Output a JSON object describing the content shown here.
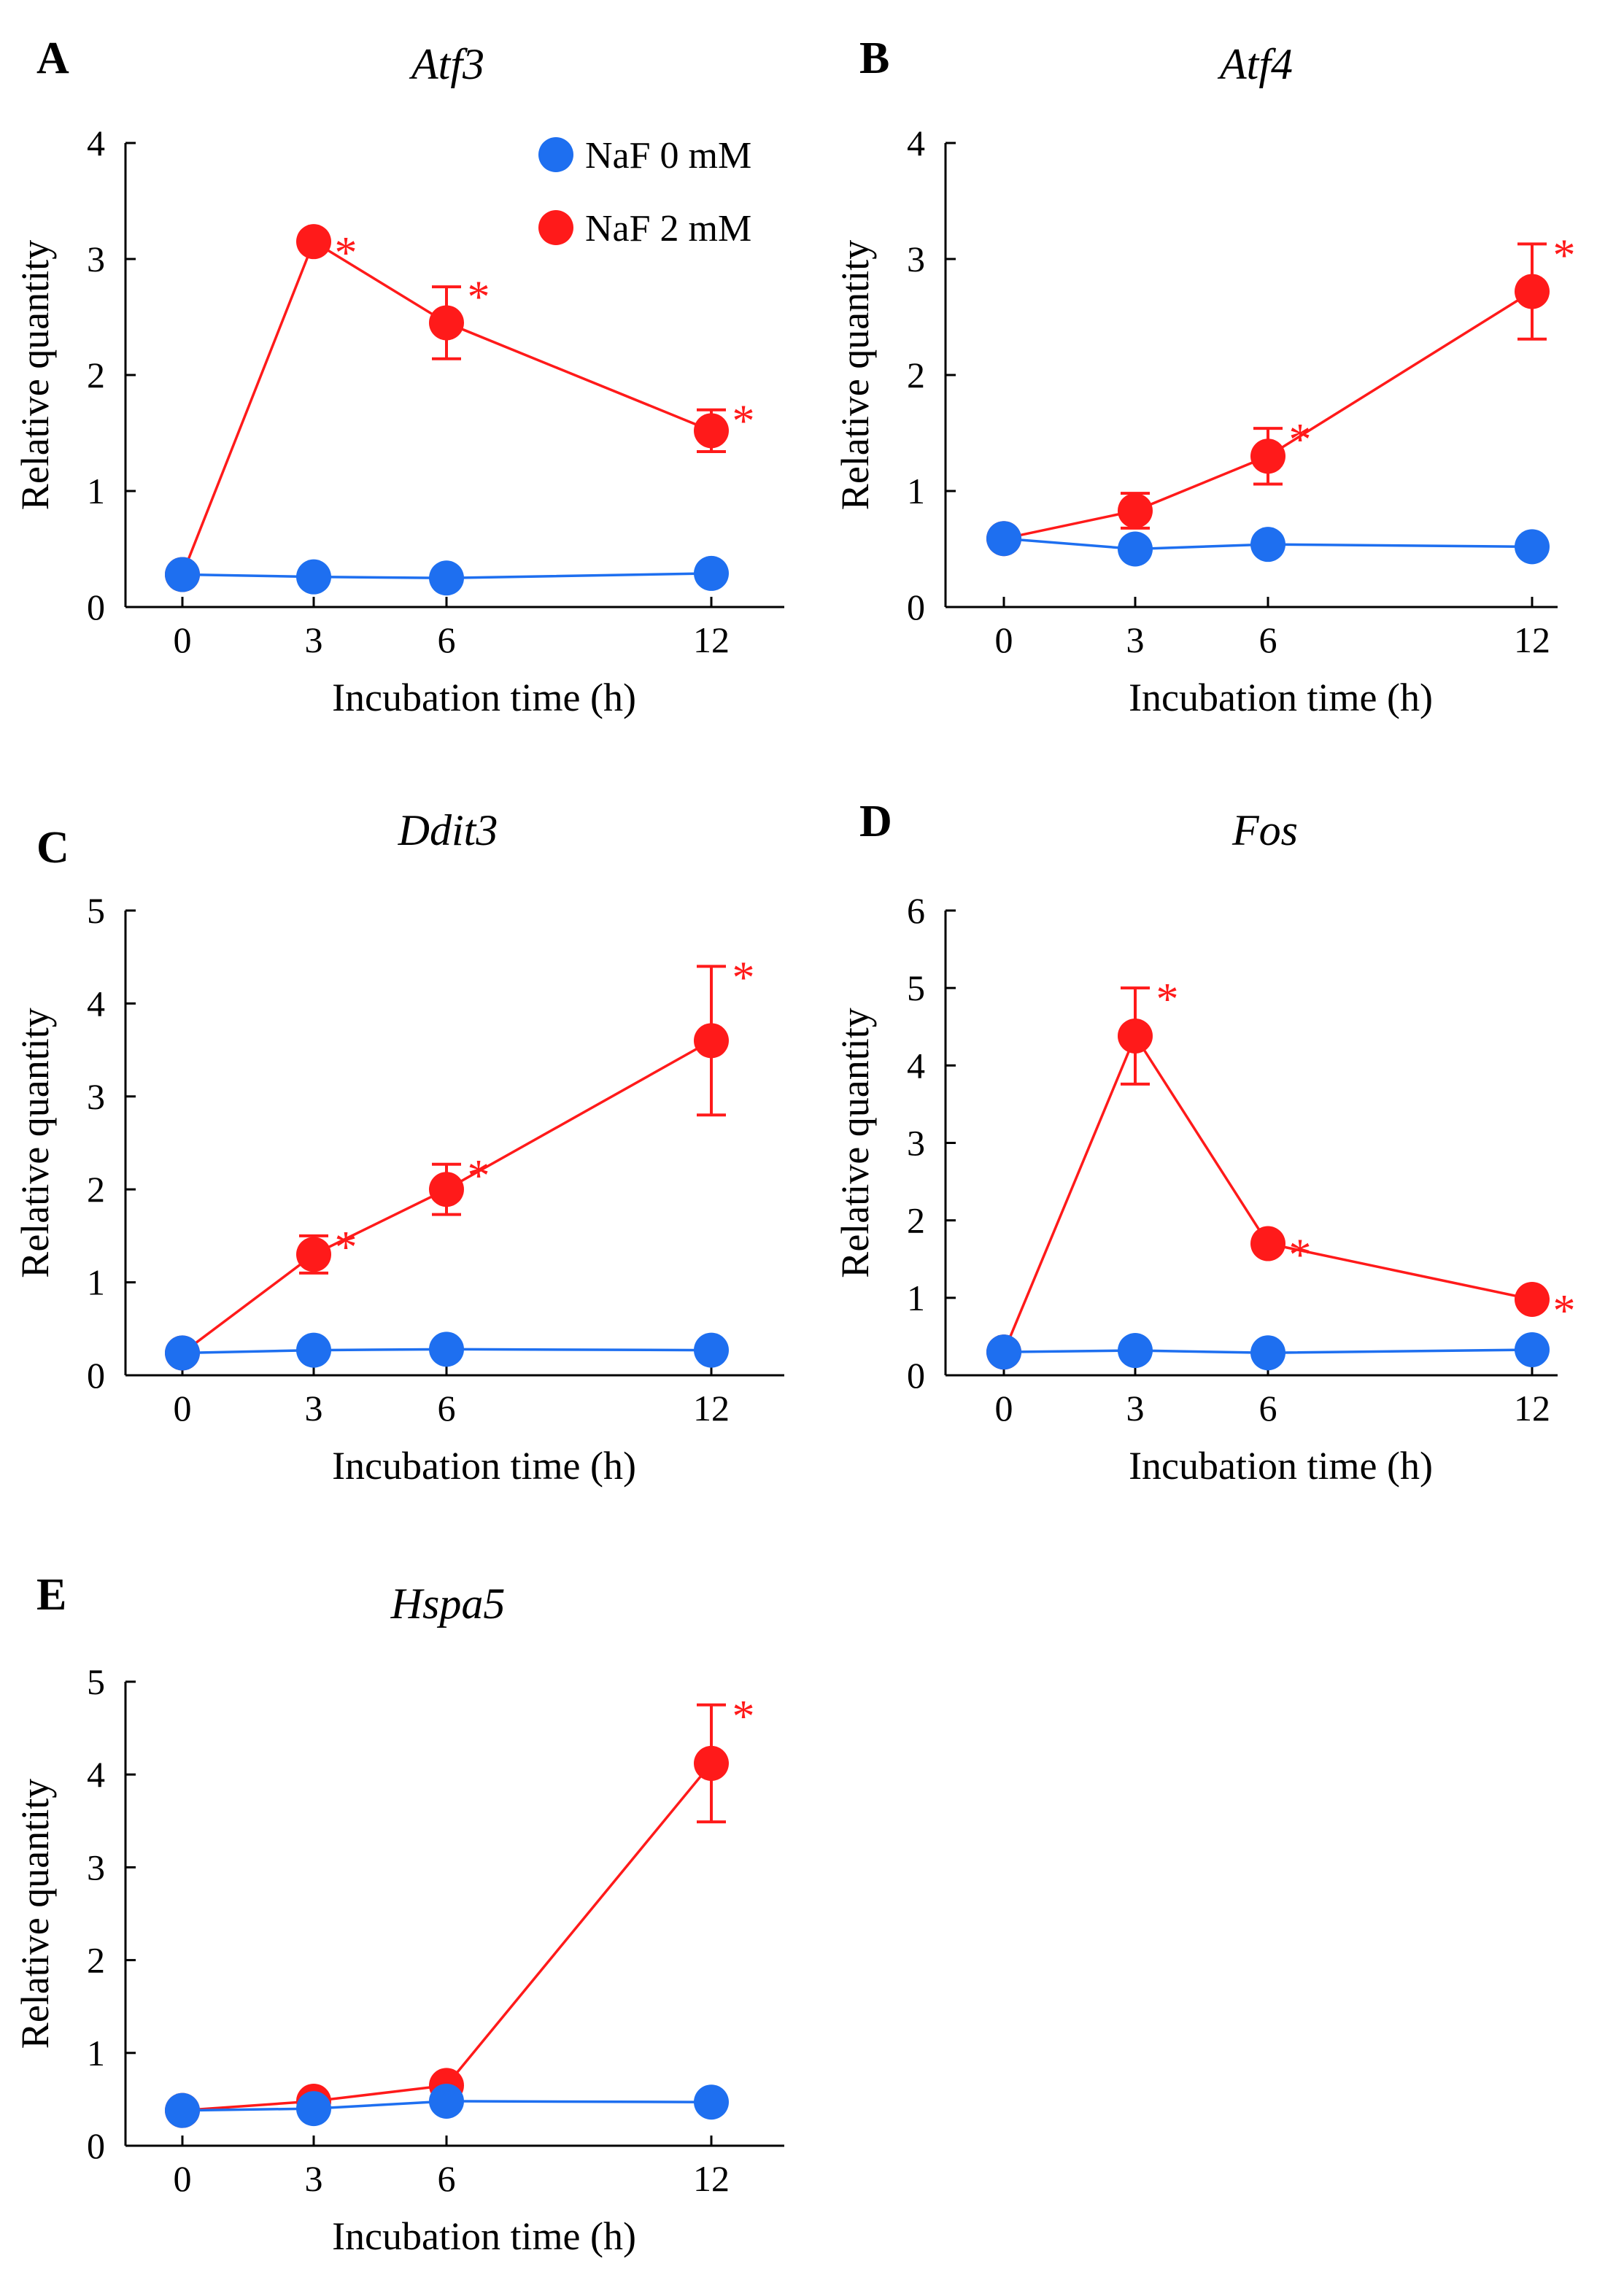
{
  "colors": {
    "control": "#1e6ff0",
    "treated": "#ff1a1a",
    "axis": "#000000"
  },
  "legend": [
    {
      "label": "NaF 0 mM",
      "series": "control"
    },
    {
      "label": "NaF 2 mM",
      "series": "treated"
    }
  ],
  "chart_data": [
    {
      "panel": "A",
      "title": "Atf3",
      "type": "line",
      "x": [
        0,
        3,
        6,
        12
      ],
      "xticks": [
        "0",
        "3",
        "6",
        "12"
      ],
      "xlim": [
        -1.2,
        13.8
      ],
      "ylim": [
        0,
        4
      ],
      "yticks": [
        "0",
        "1",
        "2",
        "3",
        "4"
      ],
      "xlabel": "Incubation time (h)",
      "ylabel": "Relative quantity",
      "series": [
        {
          "name": "NaF 0 mM",
          "key": "control",
          "values": [
            0.28,
            0.26,
            0.25,
            0.29
          ],
          "errors": [
            0,
            0,
            0,
            0
          ]
        },
        {
          "name": "NaF 2 mM",
          "key": "treated",
          "values": [
            0.28,
            3.15,
            2.45,
            1.52
          ],
          "errors": [
            0,
            0,
            0.31,
            0.18
          ]
        }
      ],
      "significance": [
        {
          "x": 3,
          "y": 3.15,
          "label": "*"
        },
        {
          "x": 6,
          "y": 2.77,
          "label": "*"
        },
        {
          "x": 12,
          "y": 1.7,
          "label": "*"
        }
      ]
    },
    {
      "panel": "B",
      "title": "Atf4",
      "type": "line",
      "x": [
        0,
        3,
        6,
        12
      ],
      "xticks": [
        "0",
        "3",
        "6",
        "12"
      ],
      "xlim": [
        -1.2,
        13.8
      ],
      "ylim": [
        0,
        4
      ],
      "yticks": [
        "0",
        "1",
        "2",
        "3",
        "4"
      ],
      "xlabel": "Incubation time (h)",
      "ylabel": "Relative quantity",
      "series": [
        {
          "name": "NaF 0 mM",
          "key": "control",
          "values": [
            0.59,
            0.5,
            0.54,
            0.52
          ],
          "errors": [
            0,
            0,
            0,
            0
          ]
        },
        {
          "name": "NaF 2 mM",
          "key": "treated",
          "values": [
            0.59,
            0.83,
            1.3,
            2.72
          ],
          "errors": [
            0,
            0.15,
            0.24,
            0.41
          ]
        }
      ],
      "significance": [
        {
          "x": 6,
          "y": 1.54,
          "label": "*"
        },
        {
          "x": 12,
          "y": 3.13,
          "label": "*"
        }
      ]
    },
    {
      "panel": "C",
      "title": "Ddit3",
      "type": "line",
      "x": [
        0,
        3,
        6,
        12
      ],
      "xticks": [
        "0",
        "3",
        "6",
        "12"
      ],
      "xlim": [
        -1.2,
        13.8
      ],
      "ylim": [
        0,
        5
      ],
      "yticks": [
        "0",
        "1",
        "2",
        "3",
        "4",
        "5"
      ],
      "xlabel": "Incubation time (h)",
      "ylabel": "Relative quantity",
      "series": [
        {
          "name": "NaF 0 mM",
          "key": "control",
          "values": [
            0.24,
            0.27,
            0.28,
            0.27
          ],
          "errors": [
            0,
            0,
            0,
            0
          ]
        },
        {
          "name": "NaF 2 mM",
          "key": "treated",
          "values": [
            0.24,
            1.3,
            2.0,
            3.6
          ],
          "errors": [
            0,
            0.2,
            0.27,
            0.8
          ]
        }
      ],
      "significance": [
        {
          "x": 3,
          "y": 1.5,
          "label": "*"
        },
        {
          "x": 6,
          "y": 2.27,
          "label": "*"
        },
        {
          "x": 12,
          "y": 4.4,
          "label": "*"
        }
      ]
    },
    {
      "panel": "D",
      "title": "Fos",
      "type": "line",
      "x": [
        0,
        3,
        6,
        12
      ],
      "xticks": [
        "0",
        "3",
        "6",
        "12"
      ],
      "xlim": [
        -1.2,
        13.8
      ],
      "ylim": [
        0,
        6
      ],
      "yticks": [
        "0",
        "1",
        "2",
        "3",
        "4",
        "5",
        "6"
      ],
      "xlabel": "Incubation time (h)",
      "ylabel": "Relative quantity",
      "series": [
        {
          "name": "NaF 0 mM",
          "key": "control",
          "values": [
            0.3,
            0.32,
            0.29,
            0.33
          ],
          "errors": [
            0,
            0,
            0,
            0
          ]
        },
        {
          "name": "NaF 2 mM",
          "key": "treated",
          "values": [
            0.3,
            4.38,
            1.7,
            0.98
          ],
          "errors": [
            0,
            0.62,
            0,
            0
          ]
        }
      ],
      "significance": [
        {
          "x": 3,
          "y": 5.0,
          "label": "*"
        },
        {
          "x": 6,
          "y": 1.7,
          "label": "*"
        },
        {
          "x": 12,
          "y": 0.98,
          "label": "*"
        }
      ]
    },
    {
      "panel": "E",
      "title": "Hspa5",
      "type": "line",
      "x": [
        0,
        3,
        6,
        12
      ],
      "xticks": [
        "0",
        "3",
        "6",
        "12"
      ],
      "xlim": [
        -1.2,
        13.8
      ],
      "ylim": [
        0,
        5
      ],
      "yticks": [
        "0",
        "1",
        "2",
        "3",
        "4",
        "5"
      ],
      "xlabel": "Incubation time (h)",
      "ylabel": "Relative quantity",
      "series": [
        {
          "name": "NaF 0 mM",
          "key": "control",
          "values": [
            0.38,
            0.4,
            0.48,
            0.47
          ],
          "errors": [
            0,
            0,
            0,
            0
          ]
        },
        {
          "name": "NaF 2 mM",
          "key": "treated",
          "values": [
            0.38,
            0.48,
            0.65,
            4.12
          ],
          "errors": [
            0,
            0,
            0,
            0.63
          ]
        }
      ],
      "significance": [
        {
          "x": 12,
          "y": 4.75,
          "label": "*"
        }
      ]
    }
  ]
}
